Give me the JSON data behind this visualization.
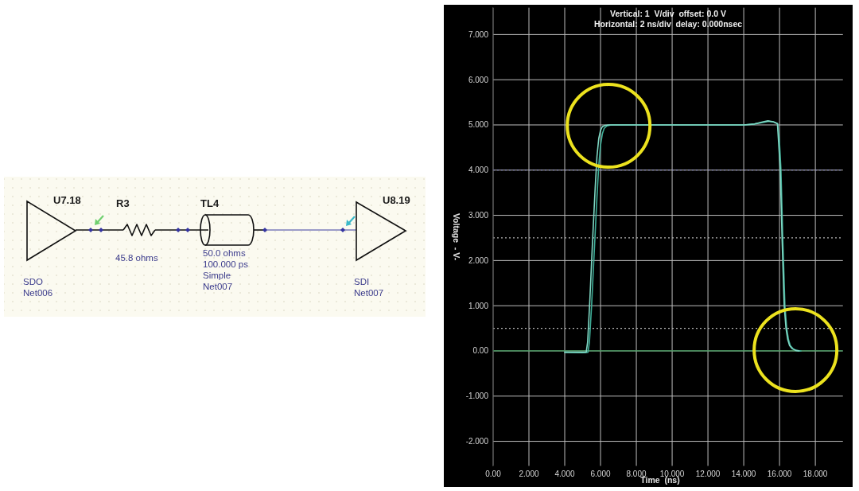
{
  "chart_data": [
    {
      "type": "other",
      "annotations": [
        "U7.18",
        "R3",
        "TL4",
        "U8.19",
        "45.8 ohms",
        "50.0 ohms",
        "100.000 ps",
        "Simple",
        "Net007",
        "SDO",
        "Net006",
        "SDI",
        "Net007"
      ]
    },
    {
      "type": "line",
      "title": "Vertical: 1  V/div  offset: 0.0 V",
      "subtitle": "Horizontal: 2 ns/div  delay: 0.000nsec",
      "xlabel": "Time  (ns)",
      "ylabel": "Voltage  - V-",
      "xlim": [
        0,
        19.55
      ],
      "xticks": [
        {
          "value": 0,
          "label": "0.00"
        },
        {
          "value": 2,
          "label": "2.000"
        },
        {
          "value": 4,
          "label": "4.000"
        },
        {
          "value": 6,
          "label": "6.000"
        },
        {
          "value": 8,
          "label": "8.000"
        },
        {
          "value": 10,
          "label": "10.000"
        },
        {
          "value": 12,
          "label": "12.000"
        },
        {
          "value": 14,
          "label": "14.000"
        },
        {
          "value": 16,
          "label": "16.000"
        },
        {
          "value": 18,
          "label": "18.000"
        }
      ],
      "ylim": [
        -2.55,
        7.6
      ],
      "yticks": [
        {
          "value": -2,
          "label": "-2.000"
        },
        {
          "value": -1,
          "label": "-1.000"
        },
        {
          "value": 0,
          "label": "0.00"
        },
        {
          "value": 1,
          "label": "1.000"
        },
        {
          "value": 2,
          "label": "2.000"
        },
        {
          "value": 3,
          "label": "3.000"
        },
        {
          "value": 4,
          "label": "4.000"
        },
        {
          "value": 5,
          "label": "5.000"
        },
        {
          "value": 6,
          "label": "6.000"
        },
        {
          "value": 7,
          "label": "7.000"
        }
      ],
      "grid": true,
      "ref_lines": [
        {
          "axis": "y",
          "value": 0,
          "color": "#3f9a5a",
          "line_style": "solid"
        },
        {
          "axis": "y",
          "value": 4,
          "color": "#8c8cd0",
          "line_style": "dotted"
        },
        {
          "axis": "y",
          "value": 2.5,
          "color": "#b4b4b4",
          "line_style": "dotted"
        },
        {
          "axis": "y",
          "value": 0.5,
          "color": "#b4b4b4",
          "line_style": "dotted"
        }
      ],
      "series": [
        {
          "color": "#3fae98",
          "x": [
            4.0,
            5.0,
            5.3,
            5.38,
            5.5,
            5.65,
            5.8,
            5.9,
            6.0,
            6.1,
            6.2,
            6.35,
            6.6,
            8,
            10,
            12,
            14,
            14.6,
            15.0,
            15.4,
            15.7,
            15.9,
            16.0,
            16.08,
            16.18,
            16.3,
            16.4,
            16.5,
            16.6,
            16.75,
            16.95,
            17.2
          ],
          "values": [
            -0.03,
            -0.04,
            -0.03,
            0.2,
            1.0,
            2.2,
            3.4,
            4.1,
            4.55,
            4.8,
            4.92,
            4.98,
            5.0,
            5.0,
            5.0,
            5.0,
            5.0,
            5.02,
            5.05,
            5.08,
            5.06,
            5.02,
            4.6,
            4.0,
            2.5,
            1.0,
            0.5,
            0.25,
            0.12,
            0.05,
            0.01,
            0.0
          ]
        },
        {
          "color": "#7fd8c4",
          "x": [
            4.0,
            5.2,
            5.28,
            5.4,
            5.55,
            5.7,
            5.8,
            5.9,
            6.0,
            6.1,
            6.25,
            6.5,
            8,
            10,
            12,
            14,
            14.6,
            15.0,
            15.35,
            15.65,
            15.88,
            15.95,
            16.04,
            16.14,
            16.26,
            16.36,
            16.46,
            16.56,
            16.7,
            16.9,
            17.1
          ],
          "values": [
            -0.03,
            -0.03,
            0.2,
            1.1,
            2.4,
            3.6,
            4.3,
            4.7,
            4.88,
            4.96,
            4.99,
            5.0,
            5.0,
            5.0,
            5.0,
            5.0,
            5.02,
            5.06,
            5.09,
            5.07,
            5.03,
            4.6,
            4.0,
            2.5,
            1.0,
            0.5,
            0.25,
            0.12,
            0.05,
            0.01,
            0.0
          ]
        }
      ]
    }
  ]
}
